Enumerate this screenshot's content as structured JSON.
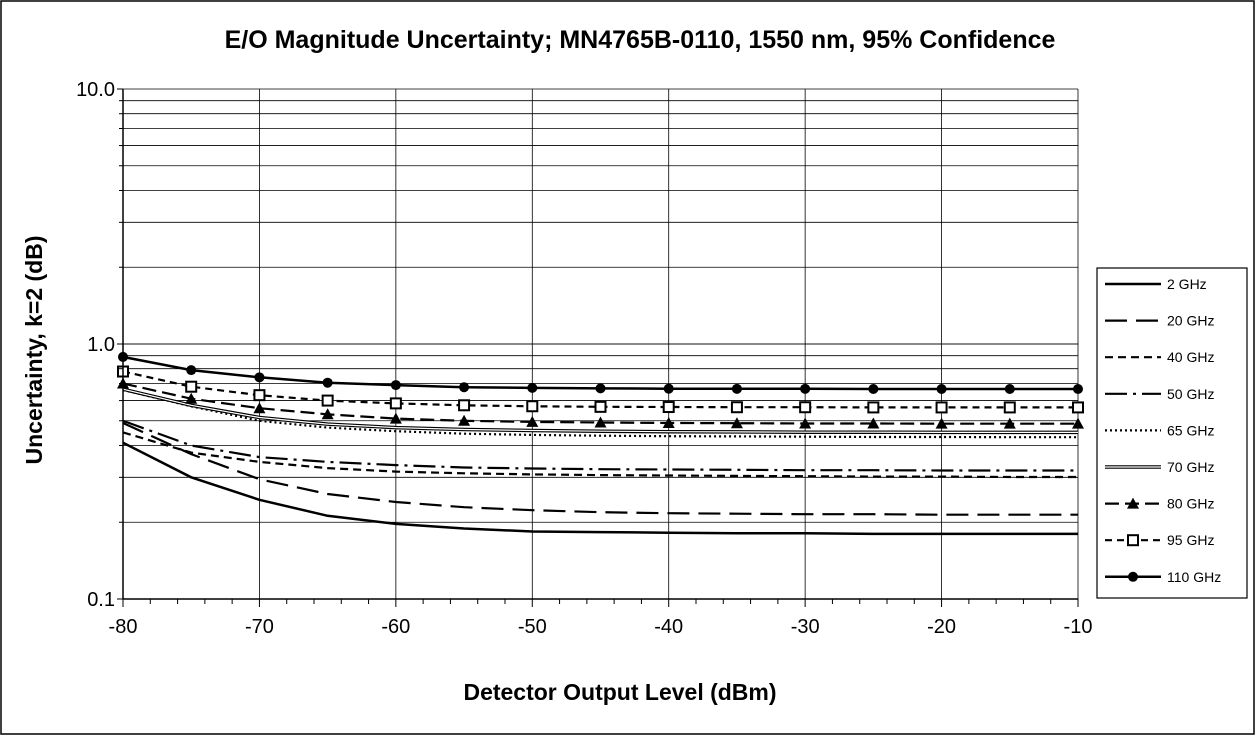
{
  "chart_data": {
    "type": "line",
    "title": "E/O Magnitude Uncertainty; MN4765B-0110, 1550 nm, 95% Confidence",
    "xlabel": "Detector Output Level (dBm)",
    "ylabel": "Uncertainty, k=2 (dB)",
    "x_ticks": [
      "-80",
      "-70",
      "-60",
      "-50",
      "-40",
      "-30",
      "-20",
      "-10"
    ],
    "y_ticks": [
      "0.1",
      "1.0",
      "10.0"
    ],
    "xlim": [
      -80,
      -10
    ],
    "ylim": [
      0.1,
      10.0
    ],
    "y_scale": "log",
    "grid": true,
    "legend_position": "right",
    "x": [
      -80,
      -75,
      -70,
      -65,
      -60,
      -55,
      -50,
      -45,
      -40,
      -35,
      -30,
      -25,
      -20,
      -15,
      -10
    ],
    "series": [
      {
        "name": "2 GHz",
        "style": "solid",
        "values": [
          0.41,
          0.3,
          0.245,
          0.212,
          0.197,
          0.189,
          0.184,
          0.183,
          0.182,
          0.181,
          0.181,
          0.18,
          0.18,
          0.18,
          0.18
        ]
      },
      {
        "name": "20 GHz",
        "style": "long-dash",
        "values": [
          0.49,
          0.37,
          0.295,
          0.258,
          0.24,
          0.229,
          0.223,
          0.219,
          0.217,
          0.216,
          0.215,
          0.215,
          0.214,
          0.214,
          0.214
        ]
      },
      {
        "name": "40 GHz",
        "style": "short-dash",
        "values": [
          0.45,
          0.375,
          0.345,
          0.326,
          0.316,
          0.311,
          0.308,
          0.306,
          0.305,
          0.304,
          0.303,
          0.302,
          0.302,
          0.301,
          0.301
        ]
      },
      {
        "name": "50 GHz",
        "style": "dash-dot",
        "values": [
          0.5,
          0.4,
          0.36,
          0.345,
          0.335,
          0.328,
          0.325,
          0.323,
          0.322,
          0.321,
          0.32,
          0.32,
          0.319,
          0.319,
          0.319
        ]
      },
      {
        "name": "65 GHz",
        "style": "dotted",
        "values": [
          0.66,
          0.57,
          0.5,
          0.47,
          0.455,
          0.445,
          0.44,
          0.437,
          0.435,
          0.434,
          0.433,
          0.432,
          0.432,
          0.431,
          0.431
        ]
      },
      {
        "name": "70 GHz",
        "style": "double",
        "values": [
          0.665,
          0.575,
          0.515,
          0.485,
          0.47,
          0.462,
          0.458,
          0.455,
          0.453,
          0.452,
          0.451,
          0.451,
          0.45,
          0.45,
          0.45
        ]
      },
      {
        "name": "80 GHz",
        "style": "dash-triangle",
        "values": [
          0.7,
          0.61,
          0.56,
          0.53,
          0.51,
          0.5,
          0.495,
          0.492,
          0.49,
          0.489,
          0.488,
          0.488,
          0.487,
          0.487,
          0.487
        ]
      },
      {
        "name": "95 GHz",
        "style": "dash-square",
        "values": [
          0.78,
          0.68,
          0.63,
          0.6,
          0.585,
          0.575,
          0.57,
          0.567,
          0.566,
          0.565,
          0.565,
          0.564,
          0.564,
          0.564,
          0.564
        ]
      },
      {
        "name": "110 GHz",
        "style": "solid-circle",
        "values": [
          0.89,
          0.79,
          0.74,
          0.705,
          0.69,
          0.677,
          0.673,
          0.67,
          0.668,
          0.667,
          0.667,
          0.666,
          0.666,
          0.666,
          0.666
        ]
      }
    ]
  }
}
